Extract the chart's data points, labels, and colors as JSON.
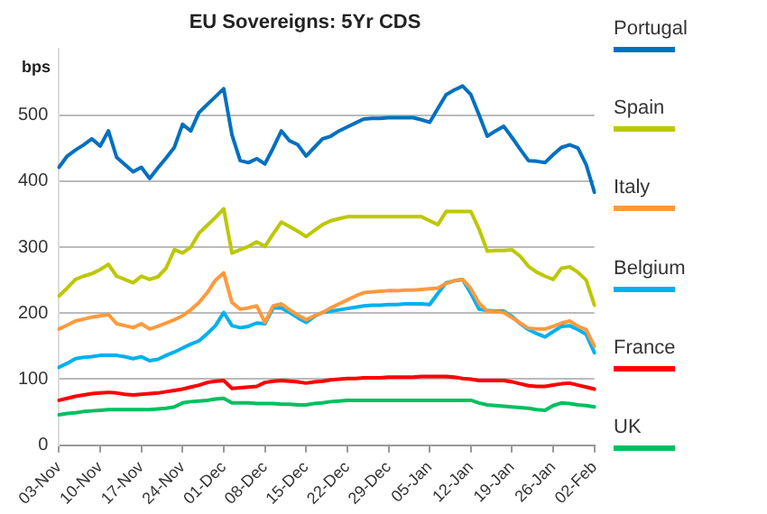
{
  "chart_data": {
    "type": "line",
    "title": "EU Sovereigns: 5Yr CDS",
    "ylabel": "bps",
    "legend": "right",
    "grid": "y",
    "marker": "none",
    "line_style": "solid",
    "categories": [
      "03-Nov",
      null,
      null,
      null,
      null,
      "10-Nov",
      null,
      null,
      null,
      null,
      "17-Nov",
      null,
      null,
      null,
      null,
      "24-Nov",
      null,
      null,
      null,
      null,
      "01-Dec",
      null,
      null,
      null,
      null,
      "08-Dec",
      null,
      null,
      null,
      null,
      "15-Dec",
      null,
      null,
      null,
      null,
      "22-Dec",
      null,
      null,
      null,
      null,
      "29-Dec",
      null,
      null,
      null,
      null,
      "05-Jan",
      null,
      null,
      null,
      null,
      "12-Jan",
      null,
      null,
      null,
      null,
      "19-Jan",
      null,
      null,
      null,
      null,
      "26-Jan",
      null,
      null,
      null,
      null,
      "02-Feb"
    ],
    "ylim": [
      0,
      600
    ],
    "yticks": [
      0,
      100,
      200,
      300,
      400,
      500
    ],
    "series": [
      {
        "name": "Portugal",
        "color": "#0070c0",
        "values": [
          421,
          438,
          447,
          455,
          464,
          453,
          476,
          436,
          425,
          414,
          421,
          404,
          420,
          435,
          451,
          486,
          476,
          504,
          516,
          528,
          540,
          470,
          431,
          428,
          434,
          426,
          450,
          476,
          461,
          455,
          438,
          451,
          464,
          468,
          476,
          482,
          488,
          494,
          495,
          495,
          496,
          496,
          496,
          496,
          493,
          489,
          510,
          531,
          538,
          544,
          531,
          500,
          468,
          476,
          483,
          466,
          448,
          431,
          430,
          428,
          440,
          451,
          455,
          450,
          425,
          383
        ]
      },
      {
        "name": "Spain",
        "color": "#bcc800",
        "values": [
          226,
          238,
          251,
          256,
          260,
          266,
          274,
          256,
          251,
          246,
          256,
          251,
          255,
          268,
          296,
          291,
          300,
          321,
          333,
          345,
          358,
          291,
          296,
          301,
          308,
          301,
          320,
          338,
          331,
          324,
          316,
          325,
          334,
          340,
          343,
          346,
          346,
          346,
          346,
          346,
          346,
          346,
          346,
          346,
          346,
          340,
          334,
          354,
          354,
          354,
          354,
          327,
          294,
          295,
          295,
          296,
          286,
          271,
          262,
          256,
          251,
          268,
          270,
          262,
          250,
          212
        ]
      },
      {
        "name": "Italy",
        "color": "#ff9a3c",
        "values": [
          176,
          182,
          188,
          191,
          194,
          196,
          198,
          184,
          181,
          178,
          184,
          176,
          180,
          185,
          190,
          196,
          205,
          216,
          231,
          250,
          261,
          216,
          206,
          208,
          211,
          186,
          211,
          214,
          205,
          197,
          190,
          196,
          201,
          208,
          214,
          220,
          226,
          231,
          232,
          233,
          234,
          234,
          235,
          235,
          236,
          237,
          238,
          245,
          249,
          251,
          237,
          215,
          203,
          202,
          201,
          193,
          185,
          177,
          176,
          176,
          180,
          185,
          188,
          180,
          175,
          150
        ]
      },
      {
        "name": "Belgium",
        "color": "#00b0f0",
        "values": [
          118,
          124,
          131,
          133,
          134,
          136,
          136,
          136,
          134,
          131,
          134,
          128,
          130,
          136,
          141,
          147,
          153,
          158,
          169,
          181,
          201,
          181,
          178,
          180,
          185,
          184,
          208,
          208,
          201,
          193,
          186,
          195,
          201,
          203,
          205,
          207,
          209,
          211,
          212,
          212,
          213,
          213,
          214,
          214,
          214,
          213,
          230,
          246,
          249,
          251,
          230,
          206,
          204,
          203,
          203,
          195,
          184,
          175,
          169,
          164,
          172,
          180,
          181,
          175,
          168,
          140
        ]
      },
      {
        "name": "France",
        "color": "#ff0000",
        "values": [
          68,
          71,
          74,
          76,
          78,
          79,
          80,
          79,
          77,
          76,
          77,
          78,
          79,
          81,
          83,
          85,
          88,
          91,
          95,
          97,
          98,
          86,
          87,
          88,
          89,
          95,
          97,
          98,
          97,
          96,
          94,
          96,
          97,
          99,
          100,
          101,
          101,
          102,
          102,
          102,
          103,
          103,
          103,
          103,
          104,
          104,
          104,
          104,
          103,
          101,
          100,
          98,
          98,
          98,
          98,
          96,
          93,
          90,
          89,
          89,
          91,
          93,
          94,
          91,
          88,
          85
        ]
      },
      {
        "name": "UK",
        "color": "#00c060",
        "values": [
          46,
          48,
          49,
          51,
          52,
          53,
          54,
          54,
          54,
          54,
          54,
          54,
          55,
          56,
          58,
          64,
          66,
          67,
          68,
          70,
          71,
          64,
          64,
          64,
          63,
          63,
          63,
          62,
          62,
          61,
          61,
          63,
          64,
          66,
          67,
          68,
          68,
          68,
          68,
          68,
          68,
          68,
          68,
          68,
          68,
          68,
          68,
          68,
          68,
          68,
          68,
          64,
          61,
          60,
          59,
          58,
          57,
          56,
          54,
          53,
          60,
          64,
          63,
          61,
          60,
          58
        ]
      }
    ]
  }
}
